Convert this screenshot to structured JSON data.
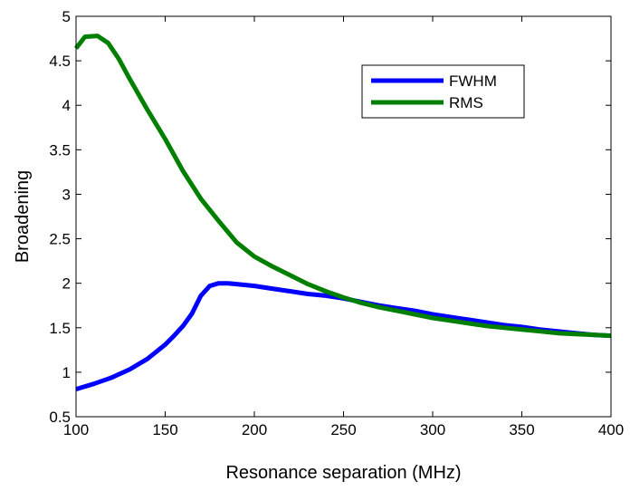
{
  "chart_data": {
    "type": "line",
    "title": "",
    "xlabel": "Resonance separation (MHz)",
    "ylabel": "Broadening",
    "xlim": [
      100,
      400
    ],
    "ylim": [
      0.5,
      5
    ],
    "xticks": [
      100,
      150,
      200,
      250,
      300,
      350,
      400
    ],
    "yticks": [
      0.5,
      1,
      1.5,
      2,
      2.5,
      3,
      3.5,
      4,
      4.5,
      5
    ],
    "xtick_labels": [
      "100",
      "150",
      "200",
      "250",
      "300",
      "350",
      "400"
    ],
    "ytick_labels": [
      "0.5",
      "1",
      "1.5",
      "2",
      "2.5",
      "3",
      "3.5",
      "4",
      "4.5",
      "5"
    ],
    "grid": false,
    "legend_position": "top-right",
    "series": [
      {
        "name": "FWHM",
        "color": "#0000ff",
        "x": [
          100,
          110,
          120,
          130,
          140,
          150,
          155,
          160,
          165,
          170,
          175,
          180,
          185,
          190,
          200,
          210,
          220,
          230,
          240,
          250,
          260,
          270,
          280,
          290,
          300,
          310,
          320,
          330,
          340,
          350,
          360,
          370,
          380,
          390,
          400
        ],
        "y": [
          0.81,
          0.87,
          0.94,
          1.03,
          1.15,
          1.31,
          1.41,
          1.52,
          1.66,
          1.86,
          1.97,
          2.0,
          2.0,
          1.99,
          1.97,
          1.94,
          1.91,
          1.88,
          1.86,
          1.83,
          1.79,
          1.75,
          1.72,
          1.69,
          1.65,
          1.62,
          1.59,
          1.56,
          1.53,
          1.51,
          1.48,
          1.46,
          1.44,
          1.42,
          1.41
        ]
      },
      {
        "name": "RMS",
        "color": "#007f00",
        "x": [
          100,
          105,
          112,
          118,
          124,
          130,
          140,
          150,
          160,
          170,
          180,
          190,
          200,
          210,
          220,
          230,
          240,
          250,
          260,
          270,
          280,
          290,
          300,
          310,
          320,
          330,
          340,
          350,
          360,
          370,
          380,
          390,
          400
        ],
        "y": [
          4.64,
          4.77,
          4.78,
          4.7,
          4.52,
          4.3,
          3.95,
          3.62,
          3.26,
          2.95,
          2.7,
          2.46,
          2.3,
          2.19,
          2.09,
          1.99,
          1.91,
          1.84,
          1.78,
          1.73,
          1.69,
          1.65,
          1.61,
          1.58,
          1.55,
          1.52,
          1.5,
          1.48,
          1.46,
          1.44,
          1.43,
          1.42,
          1.41
        ]
      }
    ]
  }
}
